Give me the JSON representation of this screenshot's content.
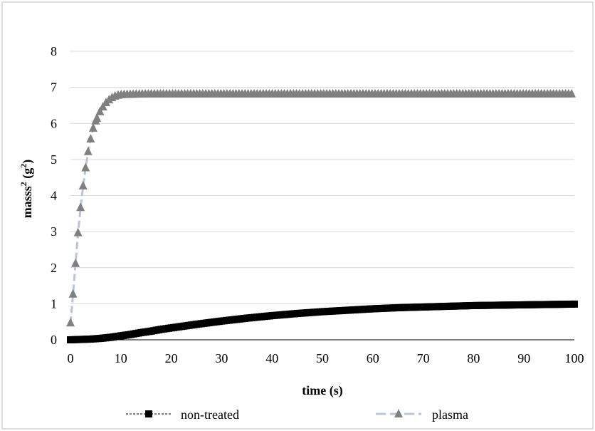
{
  "chart_data": {
    "type": "line",
    "title": "",
    "xlabel": "time (s)",
    "ylabel_base": "masss",
    "ylabel_sup1": "2",
    "ylabel_mid": " (g",
    "ylabel_sup2": "2",
    "ylabel_end": ")",
    "xlim": [
      0,
      100
    ],
    "ylim": [
      0,
      8
    ],
    "xticks": [
      0,
      10,
      20,
      30,
      40,
      50,
      60,
      70,
      80,
      90,
      100
    ],
    "yticks": [
      0,
      1,
      2,
      3,
      4,
      5,
      6,
      7,
      8
    ],
    "grid": "horizontal",
    "legend_position": "bottom",
    "series": [
      {
        "name": "non-treated",
        "marker": "square",
        "line_style": "dashed",
        "color": "#000000",
        "x": [
          0,
          2,
          4,
          6,
          8,
          10,
          12,
          14,
          16,
          18,
          20,
          25,
          30,
          35,
          40,
          45,
          50,
          55,
          60,
          65,
          70,
          75,
          80,
          85,
          90,
          95,
          100
        ],
        "y": [
          0.0,
          0.01,
          0.02,
          0.04,
          0.07,
          0.11,
          0.15,
          0.2,
          0.24,
          0.29,
          0.33,
          0.43,
          0.52,
          0.6,
          0.67,
          0.73,
          0.78,
          0.82,
          0.86,
          0.89,
          0.91,
          0.93,
          0.95,
          0.96,
          0.97,
          0.98,
          0.99
        ]
      },
      {
        "name": "plasma",
        "marker": "triangle",
        "line_style": "dashed",
        "color": "#808080",
        "line_color": "#b8c4dc",
        "x": [
          0,
          0.5,
          1,
          1.5,
          2,
          2.5,
          3,
          3.5,
          4,
          4.5,
          5,
          6,
          7,
          8,
          9,
          10,
          15,
          20,
          30,
          40,
          50,
          60,
          70,
          80,
          90,
          100
        ],
        "y": [
          0.45,
          1.25,
          2.1,
          2.95,
          3.65,
          4.25,
          4.75,
          5.2,
          5.55,
          5.85,
          6.05,
          6.35,
          6.55,
          6.68,
          6.75,
          6.78,
          6.8,
          6.8,
          6.8,
          6.8,
          6.8,
          6.8,
          6.8,
          6.8,
          6.8,
          6.8
        ]
      }
    ]
  }
}
